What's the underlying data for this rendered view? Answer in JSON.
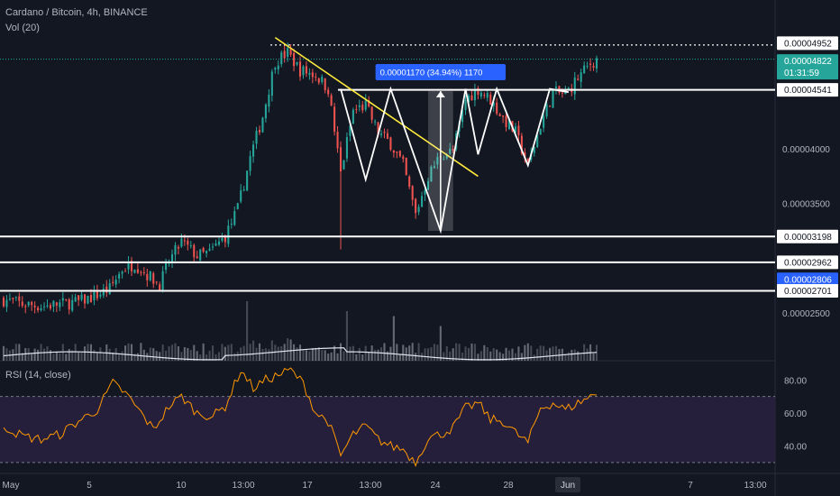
{
  "header": {
    "symbol_line": "Cardano / Bitcoin, 4h, BINANCE",
    "volume_label": "Vol (20)",
    "rsi_label": "RSI (14, close)"
  },
  "colors": {
    "background": "#131722",
    "up": "#26a69a",
    "down": "#ef5350",
    "trendline": "#ffeb3b",
    "pattern": "#ffffff",
    "rsi_line": "#ff9800",
    "rsi_band": "#2a2140",
    "measure_tag": "#2962ff",
    "current_price_tag": "#26a69a"
  },
  "price_axis": {
    "labels": [
      "0.00004000",
      "0.00003500",
      "0.00002500"
    ],
    "tags": [
      {
        "name": "dotted-high",
        "value": "0.00004952",
        "style": "outline"
      },
      {
        "name": "current-price",
        "value": "0.00004822",
        "sub": "01:31:59",
        "style": "green"
      },
      {
        "name": "neckline",
        "value": "0.00004541",
        "style": "outline"
      },
      {
        "name": "support-1",
        "value": "0.00003198",
        "style": "outline"
      },
      {
        "name": "support-2",
        "value": "0.00002962",
        "style": "outline"
      },
      {
        "name": "highlight",
        "value": "0.00002806",
        "style": "blue"
      },
      {
        "name": "support-3",
        "value": "0.00002701",
        "style": "outline"
      }
    ]
  },
  "rsi_axis": {
    "labels": [
      "80.00",
      "60.00",
      "40.00"
    ]
  },
  "time_axis": {
    "labels": [
      "May",
      "5",
      "10",
      "13:00",
      "17",
      "13:00",
      "24",
      "28",
      "Jun",
      "7",
      "13:00"
    ],
    "current": "Jun"
  },
  "annotations": {
    "measure_label": "0.00001170 (34.94%) 1170"
  },
  "chart_data": {
    "type": "candlestick",
    "title": "Cardano / Bitcoin, 4h, BINANCE",
    "interval": "4h",
    "y_range": [
      2.35e-05,
      5.05e-05
    ],
    "rsi_range": [
      25,
      90
    ],
    "rsi_band": [
      30,
      70
    ],
    "key_levels": {
      "dotted_high": 4.952e-05,
      "current_price": 4.822e-05,
      "neckline": 4.541e-05,
      "support_1": 3.198e-05,
      "support_2": 2.962e-05,
      "highlight": 2.806e-05,
      "support_3": 2.701e-05
    },
    "measurement": {
      "change": 1.17e-05,
      "percent": 34.94,
      "ticks": 1170
    },
    "anchors_price": [
      [
        0,
        2.62e-05
      ],
      [
        6,
        2.58e-05
      ],
      [
        12,
        2.56e-05
      ],
      [
        18,
        2.58e-05
      ],
      [
        24,
        2.6e-05
      ],
      [
        29,
        2.65e-05
      ],
      [
        34,
        2.72e-05
      ],
      [
        38,
        2.9e-05
      ],
      [
        42,
        2.95e-05
      ],
      [
        46,
        2.85e-05
      ],
      [
        50,
        2.76e-05
      ],
      [
        53,
        2.97e-05
      ],
      [
        57,
        3.15e-05
      ],
      [
        62,
        3.02e-05
      ],
      [
        66,
        3.05e-05
      ],
      [
        71,
        3.2e-05
      ],
      [
        75,
        3.45e-05
      ],
      [
        79,
        3.92e-05
      ],
      [
        83,
        4.3e-05
      ],
      [
        87,
        4.8e-05
      ],
      [
        91,
        4.88e-05
      ],
      [
        95,
        4.72e-05
      ],
      [
        100,
        4.68e-05
      ],
      [
        104,
        4.55e-05
      ],
      [
        108,
        3.78e-05
      ],
      [
        112,
        4.35e-05
      ],
      [
        116,
        4.4e-05
      ],
      [
        120,
        4.15e-05
      ],
      [
        124,
        4.05e-05
      ],
      [
        128,
        3.85e-05
      ],
      [
        132,
        3.4e-05
      ],
      [
        136,
        3.75e-05
      ],
      [
        140,
        3.95e-05
      ],
      [
        144,
        3.98e-05
      ],
      [
        148,
        4.45e-05
      ],
      [
        152,
        4.55e-05
      ],
      [
        156,
        4.45e-05
      ],
      [
        160,
        4.28e-05
      ],
      [
        164,
        4.15e-05
      ],
      [
        168,
        3.85e-05
      ],
      [
        172,
        4.22e-05
      ],
      [
        176,
        4.52e-05
      ],
      [
        180,
        4.5e-05
      ],
      [
        184,
        4.65e-05
      ],
      [
        188,
        4.78e-05
      ],
      [
        190,
        4.82e-05
      ]
    ],
    "volume_spikes": [
      [
        78,
        0.55
      ],
      [
        110,
        0.5
      ],
      [
        125,
        0.45
      ],
      [
        140,
        0.35
      ]
    ],
    "rsi_anchors": [
      [
        0,
        52
      ],
      [
        6,
        46
      ],
      [
        12,
        44
      ],
      [
        18,
        47
      ],
      [
        24,
        55
      ],
      [
        30,
        62
      ],
      [
        35,
        78
      ],
      [
        39,
        72
      ],
      [
        44,
        60
      ],
      [
        48,
        50
      ],
      [
        53,
        64
      ],
      [
        57,
        70
      ],
      [
        62,
        60
      ],
      [
        67,
        58
      ],
      [
        71,
        64
      ],
      [
        76,
        86
      ],
      [
        80,
        75
      ],
      [
        84,
        80
      ],
      [
        88,
        83
      ],
      [
        92,
        86
      ],
      [
        96,
        78
      ],
      [
        100,
        60
      ],
      [
        104,
        55
      ],
      [
        108,
        34
      ],
      [
        112,
        47
      ],
      [
        116,
        52
      ],
      [
        120,
        44
      ],
      [
        124,
        40
      ],
      [
        128,
        38
      ],
      [
        132,
        30
      ],
      [
        136,
        45
      ],
      [
        140,
        47
      ],
      [
        144,
        51
      ],
      [
        148,
        63
      ],
      [
        152,
        66
      ],
      [
        156,
        56
      ],
      [
        160,
        55
      ],
      [
        164,
        48
      ],
      [
        168,
        42
      ],
      [
        172,
        63
      ],
      [
        176,
        66
      ],
      [
        180,
        62
      ],
      [
        184,
        66
      ],
      [
        188,
        70
      ],
      [
        190,
        72
      ]
    ]
  }
}
